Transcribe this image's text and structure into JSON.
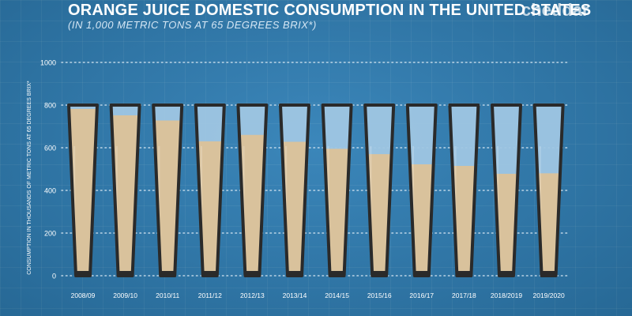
{
  "header": {
    "title": "ORANGE JUICE DOMESTIC CONSUMPTION IN THE UNITED STATES",
    "subtitle": "(IN 1,000 METRIC TONS AT 65 DEGREES BRIX*)",
    "brand": "cheddar"
  },
  "colors": {
    "background": "#2f7fb6",
    "juice": "#d9c29c",
    "glass_empty": "#9fc6e3",
    "glass_outline": "#2a2a2a",
    "gridline": "#d6e6f2",
    "tick_text": "#ffffff"
  },
  "chart_data": {
    "type": "bar",
    "title": "ORANGE JUICE DOMESTIC CONSUMPTION IN THE UNITED STATES",
    "subtitle": "(IN 1,000 METRIC TONS AT 65 DEGREES BRIX*)",
    "xlabel": "",
    "ylabel": "CONSUMPTION IN THOUSANDS OF METRIC TONS AT 65 DEGREES BRIX*",
    "ylim": [
      0,
      1000
    ],
    "yticks": [
      "0",
      "200",
      "400",
      "600",
      "800",
      "1000"
    ],
    "capacity": 800,
    "grid": true,
    "categories": [
      "2008/09",
      "2009/10",
      "2010/11",
      "2011/12",
      "2012/13",
      "2013/14",
      "2014/15",
      "2015/16",
      "2016/17",
      "2017/18",
      "2018/2019",
      "2019/2020"
    ],
    "values": [
      782,
      752,
      728,
      630,
      660,
      628,
      595,
      570,
      522,
      515,
      478,
      480
    ]
  }
}
